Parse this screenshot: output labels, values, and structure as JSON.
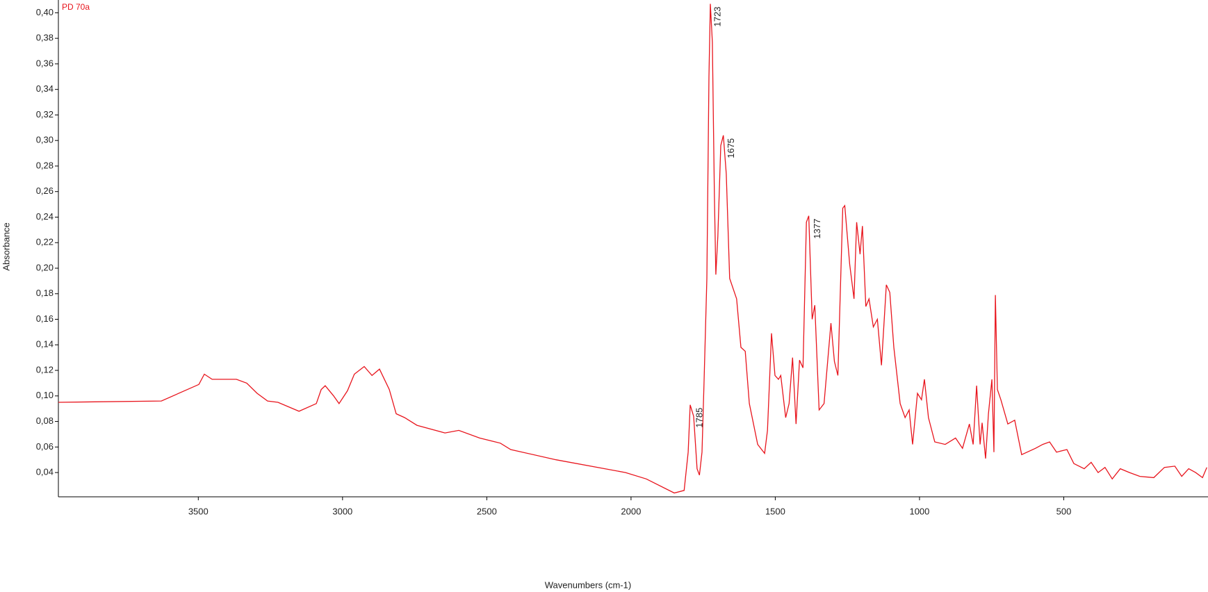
{
  "chart_data": {
    "type": "line",
    "x_label": "Wavenumbers (cm-1)",
    "y_label": "Absorbance",
    "xlim": [
      3985,
      0
    ],
    "xticks": [
      3500,
      3000,
      2500,
      2000,
      1500,
      1000,
      500
    ],
    "ylim": [
      0.021,
      0.41
    ],
    "yticks": [
      {
        "value": 0.04,
        "label": "0,04"
      },
      {
        "value": 0.06,
        "label": "0,06"
      },
      {
        "value": 0.08,
        "label": "0,08"
      },
      {
        "value": 0.1,
        "label": "0,10"
      },
      {
        "value": 0.12,
        "label": "0,12"
      },
      {
        "value": 0.14,
        "label": "0,14"
      },
      {
        "value": 0.16,
        "label": "0,16"
      },
      {
        "value": 0.18,
        "label": "0,18"
      },
      {
        "value": 0.2,
        "label": "0,20"
      },
      {
        "value": 0.22,
        "label": "0,22"
      },
      {
        "value": 0.24,
        "label": "0,24"
      },
      {
        "value": 0.26,
        "label": "0,26"
      },
      {
        "value": 0.28,
        "label": "0,28"
      },
      {
        "value": 0.3,
        "label": "0,30"
      },
      {
        "value": 0.32,
        "label": "0,32"
      },
      {
        "value": 0.34,
        "label": "0,34"
      },
      {
        "value": 0.36,
        "label": "0,36"
      },
      {
        "value": 0.38,
        "label": "0,38"
      },
      {
        "value": 0.4,
        "label": "0,40"
      }
    ],
    "annotations": [
      "1785",
      "1723",
      "1675",
      "1377"
    ],
    "x": [
      3985,
      3628,
      3498,
      3479,
      3452,
      3368,
      3332,
      3296,
      3260,
      3224,
      3151,
      3091,
      3074,
      3060,
      3031,
      3012,
      2983,
      2959,
      2925,
      2898,
      2872,
      2838,
      2814,
      2785,
      2742,
      2645,
      2597,
      2525,
      2453,
      2417,
      2260,
      2019,
      1947,
      1850,
      1816,
      1802,
      1795,
      1783,
      1771,
      1763,
      1754,
      1747,
      1737,
      1730,
      1725,
      1718,
      1711,
      1706,
      1699,
      1689,
      1680,
      1670,
      1658,
      1634,
      1619,
      1604,
      1590,
      1561,
      1537,
      1527,
      1513,
      1501,
      1489,
      1481,
      1464,
      1452,
      1440,
      1428,
      1416,
      1404,
      1392,
      1384,
      1372,
      1363,
      1348,
      1331,
      1307,
      1295,
      1283,
      1266,
      1259,
      1242,
      1227,
      1218,
      1206,
      1198,
      1186,
      1175,
      1160,
      1146,
      1132,
      1115,
      1103,
      1089,
      1067,
      1050,
      1036,
      1024,
      1007,
      993,
      983,
      969,
      947,
      911,
      875,
      851,
      827,
      814,
      802,
      790,
      783,
      771,
      761,
      749,
      742,
      737,
      730,
      718,
      694,
      670,
      646,
      598,
      573,
      549,
      525,
      489,
      465,
      429,
      405,
      381,
      357,
      332,
      304,
      272,
      236,
      188,
      151,
      115,
      91,
      67,
      43,
      19,
      4
    ],
    "series": [
      {
        "name": "PD 70a",
        "color": "#e8141c",
        "values": [
          0.095,
          0.096,
          0.109,
          0.117,
          0.113,
          0.113,
          0.11,
          0.102,
          0.096,
          0.095,
          0.088,
          0.094,
          0.105,
          0.108,
          0.1,
          0.094,
          0.104,
          0.117,
          0.123,
          0.116,
          0.121,
          0.105,
          0.086,
          0.083,
          0.077,
          0.071,
          0.073,
          0.067,
          0.063,
          0.058,
          0.05,
          0.04,
          0.035,
          0.024,
          0.026,
          0.056,
          0.093,
          0.084,
          0.043,
          0.038,
          0.056,
          0.11,
          0.192,
          0.35,
          0.407,
          0.377,
          0.258,
          0.195,
          0.225,
          0.296,
          0.304,
          0.274,
          0.192,
          0.176,
          0.138,
          0.135,
          0.094,
          0.062,
          0.055,
          0.073,
          0.149,
          0.116,
          0.113,
          0.116,
          0.083,
          0.094,
          0.13,
          0.078,
          0.128,
          0.122,
          0.236,
          0.241,
          0.16,
          0.171,
          0.089,
          0.094,
          0.157,
          0.127,
          0.116,
          0.247,
          0.249,
          0.203,
          0.176,
          0.236,
          0.211,
          0.233,
          0.17,
          0.176,
          0.154,
          0.16,
          0.124,
          0.187,
          0.181,
          0.138,
          0.094,
          0.083,
          0.089,
          0.062,
          0.102,
          0.097,
          0.113,
          0.083,
          0.064,
          0.062,
          0.067,
          0.059,
          0.078,
          0.062,
          0.108,
          0.062,
          0.079,
          0.051,
          0.086,
          0.113,
          0.056,
          0.179,
          0.105,
          0.097,
          0.078,
          0.081,
          0.054,
          0.059,
          0.062,
          0.064,
          0.056,
          0.058,
          0.047,
          0.043,
          0.048,
          0.04,
          0.044,
          0.035,
          0.043,
          0.04,
          0.037,
          0.036,
          0.044,
          0.045,
          0.037,
          0.043,
          0.04,
          0.036,
          0.044
        ]
      }
    ]
  }
}
